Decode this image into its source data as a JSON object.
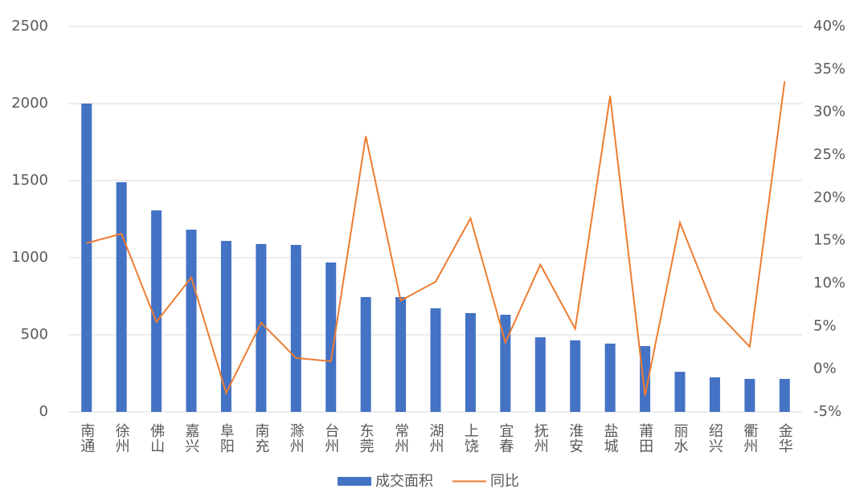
{
  "chart_data": {
    "type": "bar-line",
    "categories": [
      "南通",
      "徐州",
      "佛山",
      "嘉兴",
      "阜阳",
      "南充",
      "滁州",
      "台州",
      "东莞",
      "常州",
      "湖州",
      "上饶",
      "宜春",
      "抚州",
      "淮安",
      "盐城",
      "莆田",
      "丽水",
      "绍兴",
      "衢州",
      "金华"
    ],
    "series": [
      {
        "name": "成交面积",
        "type": "bar",
        "color": "#4472c4",
        "values": [
          2000,
          1490,
          1307,
          1182,
          1109,
          1089,
          1083,
          969,
          745,
          745,
          672,
          641,
          630,
          484,
          464,
          443,
          427,
          260,
          224,
          214,
          214
        ]
      },
      {
        "name": "同比",
        "type": "line",
        "axis": "y2",
        "color": "#ed7d31",
        "values": [
          14.7,
          15.8,
          5.5,
          10.7,
          -2.8,
          5.4,
          1.3,
          0.9,
          27.2,
          8.0,
          10.2,
          17.6,
          3.1,
          12.2,
          4.7,
          31.9,
          -3.1,
          17.1,
          6.9,
          2.6,
          33.6
        ]
      }
    ],
    "ylim": [
      0,
      2500
    ],
    "yticks": [
      0,
      500,
      1000,
      1500,
      2000,
      2500
    ],
    "y2lim": [
      -5,
      40
    ],
    "y2ticks": [
      {
        "value": -5,
        "label": "-5%"
      },
      {
        "value": 0,
        "label": "0%"
      },
      {
        "value": 5,
        "label": "5%"
      },
      {
        "value": 10,
        "label": "10%"
      },
      {
        "value": 15,
        "label": "15%"
      },
      {
        "value": 20,
        "label": "20%"
      },
      {
        "value": 25,
        "label": "25%"
      },
      {
        "value": 30,
        "label": "30%"
      },
      {
        "value": 35,
        "label": "35%"
      },
      {
        "value": 40,
        "label": "40%"
      }
    ],
    "grid": true,
    "legend": "bottom"
  }
}
